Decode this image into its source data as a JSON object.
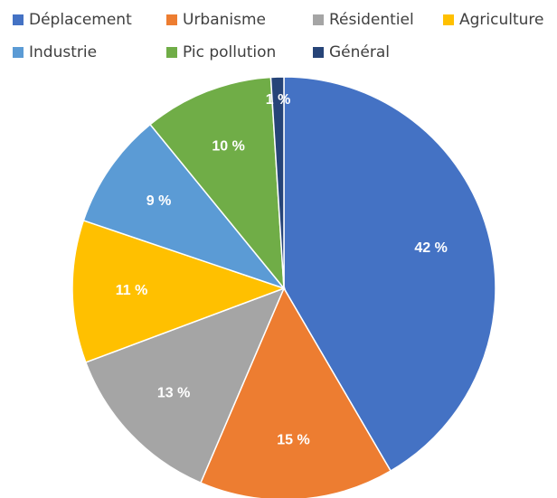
{
  "chart_data": {
    "type": "pie",
    "categories": [
      "Déplacement",
      "Urbanisme",
      "Résidentiel",
      "Agriculture",
      "Industrie",
      "Pic pollution",
      "Général"
    ],
    "values": [
      42,
      15,
      13,
      11,
      9,
      10,
      1
    ],
    "value_labels": [
      "42 %",
      "15 %",
      "13 %",
      "11 %",
      "9 %",
      "10 %",
      "1 %"
    ],
    "colors": [
      "#4472c4",
      "#ed7d31",
      "#a5a5a5",
      "#ffc000",
      "#5b9bd5",
      "#70ad47",
      "#264478"
    ]
  }
}
